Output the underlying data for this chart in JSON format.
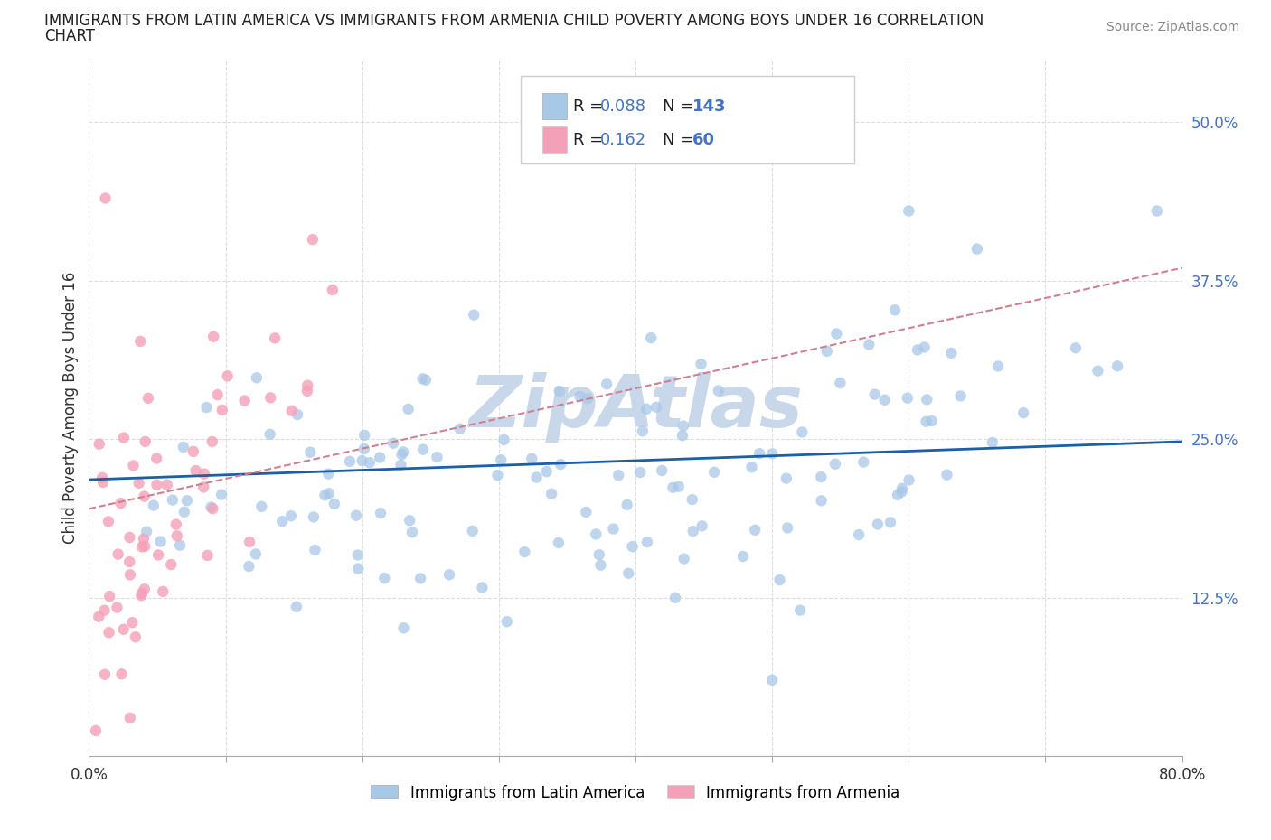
{
  "title_line1": "IMMIGRANTS FROM LATIN AMERICA VS IMMIGRANTS FROM ARMENIA CHILD POVERTY AMONG BOYS UNDER 16 CORRELATION",
  "title_line2": "CHART",
  "source": "Source: ZipAtlas.com",
  "ylabel": "Child Poverty Among Boys Under 16",
  "xlim": [
    0.0,
    0.8
  ],
  "ylim": [
    0.0,
    0.55
  ],
  "latin_R": 0.088,
  "latin_N": 143,
  "armenia_R": 0.162,
  "armenia_N": 60,
  "blue_color": "#a8c8e8",
  "pink_color": "#f4a0b8",
  "blue_line_color": "#1a5fa8",
  "dashed_line_color": "#d08090",
  "watermark": "ZipAtlas",
  "watermark_color": "#c8d8ea",
  "legend_label_latin": "Immigrants from Latin America",
  "legend_label_armenia": "Immigrants from Armenia",
  "r_n_color": "#4472c4",
  "ytick_color": "#4472c4",
  "xtick_color": "#333333",
  "title_color": "#222222",
  "source_color": "#888888",
  "grid_color": "#dddddd"
}
